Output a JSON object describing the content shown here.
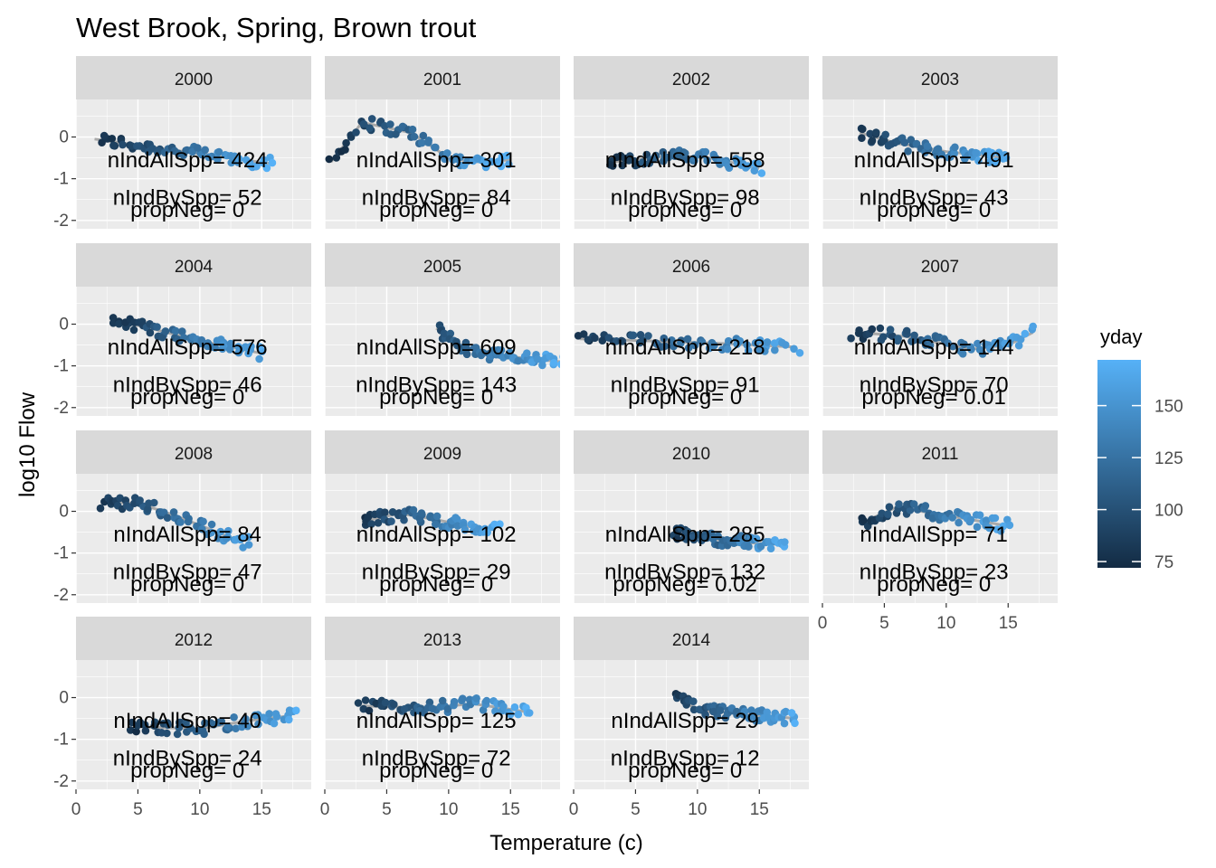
{
  "chart_data": {
    "type": "scatter",
    "title": "West Brook, Spring, Brown trout",
    "xlabel": "Temperature (c)",
    "ylabel": "log10 Flow",
    "x_ticks": [
      "0",
      "5",
      "10",
      "15"
    ],
    "y_ticks": [
      "0",
      "-1",
      "-2"
    ],
    "xlim": [
      0,
      19
    ],
    "ylim": [
      -2.2,
      0.9
    ],
    "grid": true,
    "legend": {
      "title": "yday",
      "position": "right",
      "type": "colorbar",
      "range": [
        72,
        172
      ],
      "ticks": [
        "75",
        "100",
        "125",
        "150"
      ],
      "low_color": "#132B43",
      "high_color": "#56B1F7"
    },
    "smooth_color": "#a9a9a9",
    "panels": [
      {
        "year": "2000",
        "annotations": [
          "nIndAllSpp= 424",
          "nIndBySpp= 52",
          "propNeg= 0"
        ],
        "trend": [
          [
            1.5,
            -0.05
          ],
          [
            5,
            -0.2
          ],
          [
            10,
            -0.4
          ],
          [
            16,
            -0.65
          ]
        ],
        "temp_range": [
          2,
          16
        ],
        "yday_range": [
          75,
          170
        ]
      },
      {
        "year": "2001",
        "annotations": [
          "nIndAllSpp= 301",
          "nIndBySpp= 84",
          "propNeg= 0"
        ],
        "trend": [
          [
            0.5,
            -0.6
          ],
          [
            3,
            0.35
          ],
          [
            7,
            0.1
          ],
          [
            10,
            -0.5
          ],
          [
            12,
            -0.6
          ],
          [
            15,
            -0.55
          ]
        ],
        "temp_range": [
          0.5,
          15
        ],
        "yday_range": [
          75,
          170
        ]
      },
      {
        "year": "2002",
        "annotations": [
          "nIndAllSpp= 558",
          "nIndBySpp= 98",
          "propNeg= 0"
        ],
        "trend": [
          [
            3,
            -0.6
          ],
          [
            8,
            -0.45
          ],
          [
            11,
            -0.5
          ],
          [
            15,
            -0.75
          ]
        ],
        "temp_range": [
          3,
          15
        ],
        "yday_range": [
          80,
          165
        ]
      },
      {
        "year": "2003",
        "annotations": [
          "nIndAllSpp= 491",
          "nIndBySpp= 43",
          "propNeg= 0"
        ],
        "trend": [
          [
            3,
            0.1
          ],
          [
            6,
            -0.15
          ],
          [
            10,
            -0.35
          ],
          [
            15,
            -0.5
          ]
        ],
        "temp_range": [
          3,
          15
        ],
        "yday_range": [
          80,
          170
        ]
      },
      {
        "year": "2004",
        "annotations": [
          "nIndAllSpp= 576",
          "nIndBySpp= 46",
          "propNeg= 0"
        ],
        "trend": [
          [
            3,
            0.1
          ],
          [
            6,
            -0.1
          ],
          [
            10,
            -0.4
          ],
          [
            15,
            -0.7
          ]
        ],
        "temp_range": [
          3,
          15
        ],
        "yday_range": [
          80,
          165
        ]
      },
      {
        "year": "2005",
        "annotations": [
          "nIndAllSpp= 609",
          "nIndBySpp= 143",
          "propNeg= 0"
        ],
        "trend": [
          [
            9,
            -0.1
          ],
          [
            11,
            -0.55
          ],
          [
            14,
            -0.75
          ],
          [
            19,
            -0.9
          ]
        ],
        "temp_range": [
          9,
          19
        ],
        "yday_range": [
          95,
          170
        ]
      },
      {
        "year": "2006",
        "annotations": [
          "nIndAllSpp= 218",
          "nIndBySpp= 91",
          "propNeg= 0"
        ],
        "trend": [
          [
            0.5,
            -0.35
          ],
          [
            6,
            -0.4
          ],
          [
            11,
            -0.45
          ],
          [
            18,
            -0.55
          ]
        ],
        "temp_range": [
          0.5,
          18
        ],
        "yday_range": [
          80,
          165
        ]
      },
      {
        "year": "2007",
        "annotations": [
          "nIndAllSpp= 144",
          "nIndBySpp= 70",
          "propNeg= 0.01"
        ],
        "trend": [
          [
            3,
            -0.2
          ],
          [
            7,
            -0.3
          ],
          [
            12,
            -0.6
          ],
          [
            15,
            -0.5
          ],
          [
            17,
            -0.2
          ]
        ],
        "temp_range": [
          2.5,
          17
        ],
        "yday_range": [
          80,
          165
        ]
      },
      {
        "year": "2008",
        "annotations": [
          "nIndAllSpp= 84",
          "nIndBySpp= 47",
          "propNeg= 0"
        ],
        "trend": [
          [
            2,
            0.2
          ],
          [
            5,
            0.2
          ],
          [
            8,
            -0.1
          ],
          [
            11,
            -0.45
          ],
          [
            13.5,
            -0.75
          ]
        ],
        "temp_range": [
          2,
          14
        ],
        "yday_range": [
          80,
          160
        ]
      },
      {
        "year": "2009",
        "annotations": [
          "nIndAllSpp= 102",
          "nIndBySpp= 29",
          "propNeg= 0"
        ],
        "trend": [
          [
            3,
            -0.25
          ],
          [
            6,
            -0.05
          ],
          [
            9,
            -0.2
          ],
          [
            13,
            -0.45
          ]
        ],
        "temp_range": [
          3,
          14
        ],
        "yday_range": [
          80,
          170
        ]
      },
      {
        "year": "2010",
        "annotations": [
          "nIndAllSpp= 285",
          "nIndBySpp= 132",
          "propNeg= 0.02"
        ],
        "trend": [
          [
            8,
            -0.5
          ],
          [
            11,
            -0.65
          ],
          [
            14,
            -0.75
          ],
          [
            17,
            -0.8
          ]
        ],
        "temp_range": [
          8,
          17
        ],
        "yday_range": [
          85,
          165
        ]
      },
      {
        "year": "2011",
        "annotations": [
          "nIndAllSpp= 71",
          "nIndBySpp= 23",
          "propNeg= 0"
        ],
        "trend": [
          [
            3,
            -0.3
          ],
          [
            6,
            0.1
          ],
          [
            10,
            -0.1
          ],
          [
            15,
            -0.35
          ]
        ],
        "temp_range": [
          3,
          15
        ],
        "yday_range": [
          80,
          165
        ]
      },
      {
        "year": "2012",
        "annotations": [
          "nIndAllSpp= 40",
          "nIndBySpp= 24",
          "propNeg= 0"
        ],
        "trend": [
          [
            5,
            -0.7
          ],
          [
            10,
            -0.75
          ],
          [
            14,
            -0.55
          ],
          [
            17,
            -0.45
          ]
        ],
        "temp_range": [
          4.5,
          18
        ],
        "yday_range": [
          75,
          165
        ]
      },
      {
        "year": "2013",
        "annotations": [
          "nIndAllSpp= 125",
          "nIndBySpp= 72",
          "propNeg= 0"
        ],
        "trend": [
          [
            3,
            -0.2
          ],
          [
            8,
            -0.25
          ],
          [
            12,
            -0.15
          ],
          [
            16.5,
            -0.35
          ]
        ],
        "temp_range": [
          3,
          16.5
        ],
        "yday_range": [
          80,
          170
        ]
      },
      {
        "year": "2014",
        "annotations": [
          "nIndAllSpp= 29",
          "nIndBySpp= 12",
          "propNeg= 0"
        ],
        "trend": [
          [
            8,
            0.1
          ],
          [
            10,
            -0.3
          ],
          [
            14,
            -0.4
          ],
          [
            18,
            -0.5
          ]
        ],
        "temp_range": [
          8,
          18
        ],
        "yday_range": [
          85,
          165
        ]
      }
    ]
  }
}
